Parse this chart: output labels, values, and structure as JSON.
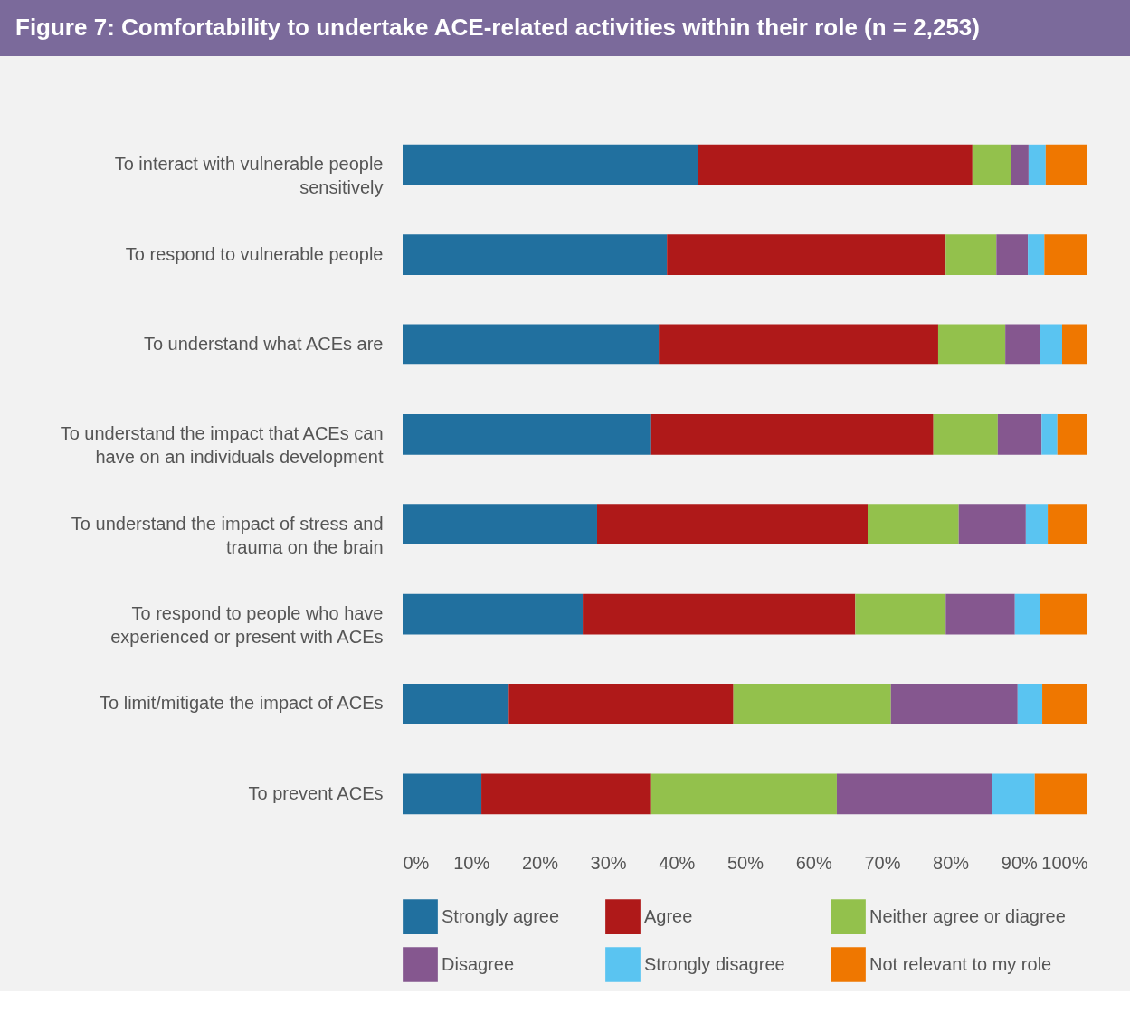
{
  "chart_data": {
    "type": "bar",
    "orientation": "horizontal",
    "stacked": true,
    "title": "Figure 7: Comfortability to undertake ACE-related activities within their role (n = 2,253)",
    "categories": [
      "To interact with vulnerable people sensitively",
      "To respond to vulnerable people",
      "To understand what ACEs are",
      "To understand the impact that ACEs can have on an individuals development",
      "To understand the impact of stress and trauma on the brain",
      "To respond to  people who have experienced or present with ACEs",
      "To limit/mitigate the impact of ACEs",
      "To prevent ACEs"
    ],
    "series": [
      {
        "name": "Strongly agree",
        "color": "#21709f",
        "values": [
          43.1,
          38.6,
          37.4,
          36.3,
          28.4,
          26.3,
          15.5,
          11.5
        ]
      },
      {
        "name": "Agree",
        "color": "#af1919",
        "values": [
          40.1,
          40.7,
          40.8,
          41.2,
          39.5,
          39.8,
          32.8,
          24.8
        ]
      },
      {
        "name": "Neither agree or diagree",
        "color": "#93c14c",
        "values": [
          5.6,
          7.4,
          9.8,
          9.4,
          13.3,
          13.2,
          23.0,
          27.1
        ]
      },
      {
        "name": "Disagree",
        "color": "#85578f",
        "values": [
          2.6,
          4.6,
          5.0,
          6.4,
          9.8,
          10.1,
          18.5,
          22.6
        ]
      },
      {
        "name": "Strongly disagree",
        "color": "#5ac4f1",
        "values": [
          2.5,
          2.4,
          3.3,
          2.3,
          3.2,
          3.7,
          3.6,
          6.3
        ]
      },
      {
        "name": "Not relevant to my role",
        "color": "#ef7700",
        "values": [
          6.1,
          6.3,
          3.7,
          4.4,
          5.8,
          6.9,
          6.6,
          7.7
        ]
      }
    ],
    "xlim": [
      0,
      100
    ],
    "xticks": [
      {
        "value": 0,
        "label": "0%"
      },
      {
        "value": 10,
        "label": "10%"
      },
      {
        "value": 20,
        "label": "20%"
      },
      {
        "value": 30,
        "label": "30%"
      },
      {
        "value": 40,
        "label": "40%"
      },
      {
        "value": 50,
        "label": "50%"
      },
      {
        "value": 60,
        "label": "60%"
      },
      {
        "value": 70,
        "label": "70%"
      },
      {
        "value": 80,
        "label": "80%"
      },
      {
        "value": 90,
        "label": "90%"
      },
      {
        "value": 100,
        "label": "100%"
      }
    ],
    "grid": false,
    "legend": "bottom"
  }
}
